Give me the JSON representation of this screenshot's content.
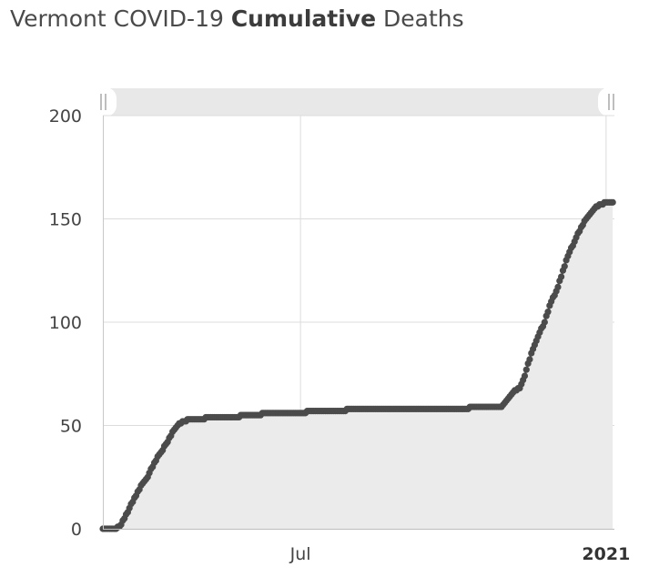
{
  "title": {
    "prefix": "Vermont COVID-19 ",
    "bold": "Cumulative",
    "suffix": " Deaths"
  },
  "navigator_handle_icon": "grip-handle-icon",
  "colors": {
    "series": "#4b4b4b",
    "area": "#ebebeb",
    "grid": "#dcdcdc",
    "navigator": "#e8e8e8"
  },
  "chart_data": {
    "type": "area",
    "title": "Vermont COVID-19 Cumulative Deaths",
    "xlabel": "",
    "ylabel": "",
    "ylim": [
      0,
      200
    ],
    "xlim": [
      "2020-03-04",
      "2021-01-06"
    ],
    "y_ticks": [
      0,
      50,
      100,
      150,
      200
    ],
    "x_ticks": [
      {
        "label": "Jul",
        "date": "2020-07-01",
        "bold": false
      },
      {
        "label": "2021",
        "date": "2021-01-01",
        "bold": true
      }
    ],
    "grid": true,
    "legend": "none",
    "series": [
      {
        "points": [
          [
            "2020-03-04",
            0
          ],
          [
            "2020-03-12",
            0
          ],
          [
            "2020-03-14",
            1
          ],
          [
            "2020-03-17",
            5
          ],
          [
            "2020-03-20",
            10
          ],
          [
            "2020-03-24",
            16
          ],
          [
            "2020-03-28",
            22
          ],
          [
            "2020-03-31",
            25
          ],
          [
            "2020-04-04",
            32
          ],
          [
            "2020-04-08",
            37
          ],
          [
            "2020-04-12",
            42
          ],
          [
            "2020-04-15",
            47
          ],
          [
            "2020-04-18",
            50
          ],
          [
            "2020-04-21",
            52
          ],
          [
            "2020-04-26",
            53
          ],
          [
            "2020-05-03",
            53
          ],
          [
            "2020-05-07",
            54
          ],
          [
            "2020-05-20",
            54
          ],
          [
            "2020-06-01",
            55
          ],
          [
            "2020-06-15",
            56
          ],
          [
            "2020-06-30",
            56
          ],
          [
            "2020-07-10",
            57
          ],
          [
            "2020-07-25",
            57
          ],
          [
            "2020-08-01",
            58
          ],
          [
            "2020-08-20",
            58
          ],
          [
            "2020-09-10",
            58
          ],
          [
            "2020-10-01",
            58
          ],
          [
            "2020-10-20",
            59
          ],
          [
            "2020-10-30",
            59
          ],
          [
            "2020-11-03",
            63
          ],
          [
            "2020-11-06",
            66
          ],
          [
            "2020-11-10",
            68
          ],
          [
            "2020-11-13",
            74
          ],
          [
            "2020-11-17",
            85
          ],
          [
            "2020-11-21",
            93
          ],
          [
            "2020-11-25",
            100
          ],
          [
            "2020-11-28",
            108
          ],
          [
            "2020-12-02",
            115
          ],
          [
            "2020-12-05",
            122
          ],
          [
            "2020-12-09",
            132
          ],
          [
            "2020-12-13",
            139
          ],
          [
            "2020-12-17",
            146
          ],
          [
            "2020-12-21",
            151
          ],
          [
            "2020-12-25",
            155
          ],
          [
            "2020-12-29",
            157
          ],
          [
            "2021-01-02",
            158
          ],
          [
            "2021-01-05",
            158
          ]
        ]
      }
    ]
  }
}
